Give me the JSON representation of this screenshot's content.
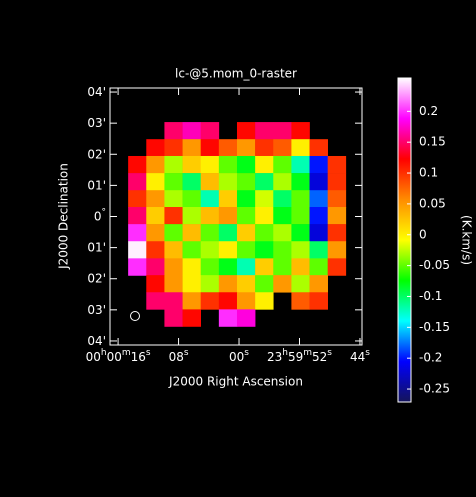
{
  "chart_data": {
    "type": "heatmap",
    "title": "lc-@5.mom_0-raster",
    "x_label": "J2000 Right Ascension",
    "y_label": "J2000 Declination",
    "colorbar_label": "(K.km/s)",
    "xlim": [
      17.07,
      -16.27
    ],
    "ylim": [
      -4.13,
      4.13
    ],
    "xticks": [
      {
        "value": 16,
        "label": "00h00m16s"
      },
      {
        "value": 8,
        "label": "08s"
      },
      {
        "value": 0,
        "label": "00s"
      },
      {
        "value": -8,
        "label": "23h59m52s"
      },
      {
        "value": -16,
        "label": "44s"
      }
    ],
    "yticks": [
      {
        "value": 4,
        "label": "04'"
      },
      {
        "value": 3,
        "label": "03'"
      },
      {
        "value": 2,
        "label": "02'"
      },
      {
        "value": 1,
        "label": "01'"
      },
      {
        "value": 0,
        "label": "0°"
      },
      {
        "value": -1,
        "label": "01'"
      },
      {
        "value": -2,
        "label": "02'"
      },
      {
        "value": -3,
        "label": "03'"
      },
      {
        "value": -4,
        "label": "04'"
      }
    ],
    "clim": [
      -0.271,
      0.254
    ],
    "cticks": [
      0.2,
      0.15,
      0.1,
      0.05,
      0,
      -0.05,
      -0.1,
      -0.15,
      -0.2,
      -0.25
    ],
    "colormap": [
      "#14145a",
      "#0000ff",
      "#00ffff",
      "#00ff00",
      "#ffff00",
      "#ff8c00",
      "#ff0000",
      "#ff00ff",
      "#ffffff"
    ],
    "x": [
      13.47,
      11.07,
      8.67,
      6.27,
      3.87,
      1.47,
      -0.93,
      -3.33,
      -5.73,
      -8.13,
      -10.53,
      -12.93
    ],
    "y": [
      2.76,
      2.21,
      1.67,
      1.12,
      0.57,
      0.03,
      -0.52,
      -1.07,
      -1.62,
      -2.16,
      -2.71,
      -3.26
    ],
    "z": [
      [
        null,
        null,
        0.15,
        0.17,
        0.15,
        null,
        0.12,
        0.15,
        0.15,
        0.12,
        null,
        null
      ],
      [
        null,
        0.12,
        0.1,
        0.05,
        0.12,
        0.08,
        0.05,
        0.1,
        0.08,
        0.0,
        0.1,
        null
      ],
      [
        0.12,
        0.05,
        -0.03,
        0.02,
        0.0,
        -0.05,
        -0.08,
        0.0,
        -0.05,
        -0.12,
        -0.2,
        0.1
      ],
      [
        0.15,
        0.0,
        -0.05,
        -0.1,
        0.03,
        -0.03,
        -0.05,
        -0.1,
        -0.03,
        -0.08,
        -0.22,
        0.1
      ],
      [
        0.1,
        0.05,
        -0.03,
        -0.05,
        -0.12,
        0.02,
        -0.08,
        -0.02,
        -0.1,
        -0.05,
        -0.18,
        0.08
      ],
      [
        0.15,
        0.02,
        0.1,
        -0.03,
        0.03,
        0.05,
        -0.05,
        0.0,
        -0.08,
        -0.05,
        -0.2,
        0.05
      ],
      [
        0.2,
        0.05,
        -0.05,
        0.03,
        -0.05,
        -0.1,
        0.02,
        -0.05,
        -0.03,
        -0.08,
        -0.22,
        0.1
      ],
      [
        0.25,
        0.1,
        0.03,
        -0.05,
        -0.03,
        0.0,
        -0.05,
        -0.08,
        -0.05,
        -0.03,
        -0.1,
        0.05
      ],
      [
        0.2,
        0.15,
        0.05,
        0.0,
        -0.05,
        -0.08,
        -0.12,
        0.02,
        -0.05,
        0.03,
        -0.05,
        0.1
      ],
      [
        null,
        0.12,
        0.05,
        0.0,
        -0.03,
        0.05,
        0.02,
        -0.05,
        0.05,
        -0.03,
        0.05,
        null
      ],
      [
        null,
        0.15,
        0.15,
        0.05,
        0.1,
        0.12,
        0.05,
        0.0,
        null,
        0.08,
        0.1,
        null
      ],
      [
        null,
        null,
        0.15,
        0.12,
        null,
        0.2,
        0.18,
        null,
        null,
        null,
        null,
        null
      ]
    ]
  }
}
